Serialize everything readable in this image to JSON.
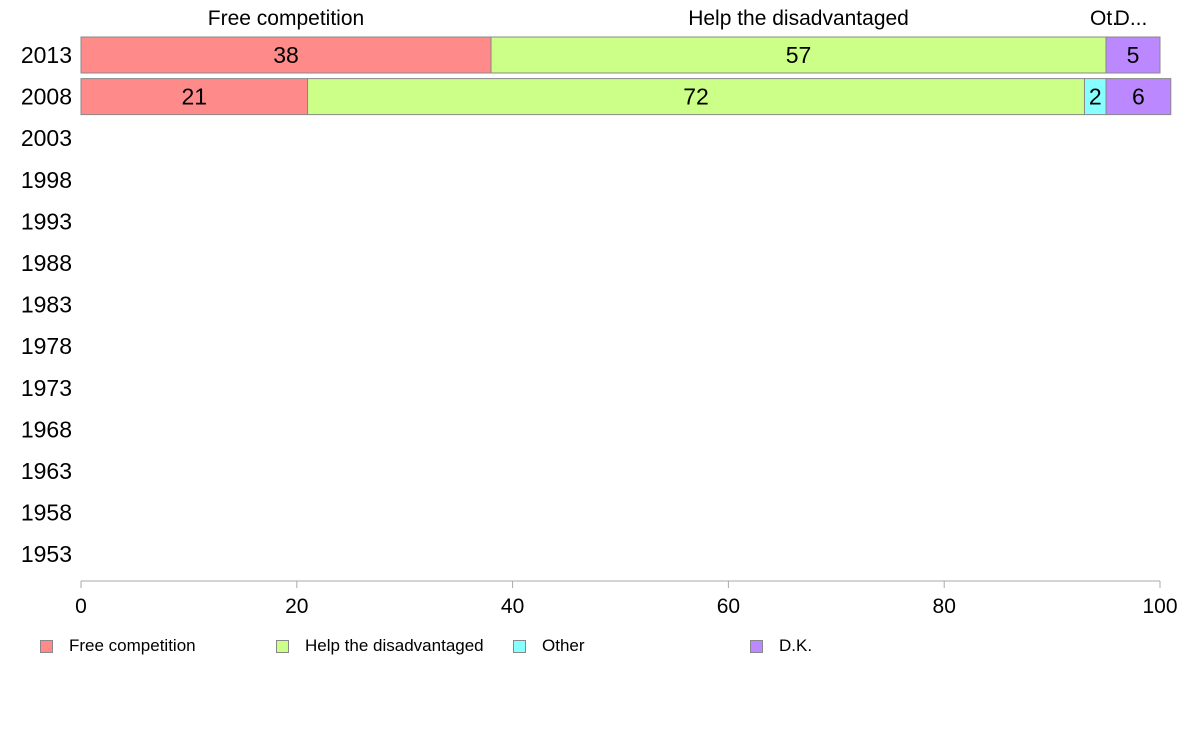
{
  "chart_data": {
    "type": "bar",
    "orientation": "horizontal",
    "stacked": true,
    "categories": [
      "2013",
      "2008",
      "2003",
      "1998",
      "1993",
      "1988",
      "1983",
      "1978",
      "1973",
      "1968",
      "1963",
      "1958",
      "1953"
    ],
    "series": [
      {
        "name": "Free competition",
        "color": "#ff8a8a",
        "values": [
          38,
          21,
          null,
          null,
          null,
          null,
          null,
          null,
          null,
          null,
          null,
          null,
          null
        ]
      },
      {
        "name": "Help the disadvantaged",
        "color": "#ccff88",
        "values": [
          57,
          72,
          null,
          null,
          null,
          null,
          null,
          null,
          null,
          null,
          null,
          null,
          null
        ]
      },
      {
        "name": "Other",
        "color": "#88ffff",
        "values": [
          0,
          2,
          null,
          null,
          null,
          null,
          null,
          null,
          null,
          null,
          null,
          null,
          null
        ]
      },
      {
        "name": "D.K.",
        "color": "#bb88ff",
        "values": [
          5,
          6,
          null,
          null,
          null,
          null,
          null,
          null,
          null,
          null,
          null,
          null,
          null
        ]
      }
    ],
    "top_labels": [
      "Free competition",
      "Help the disadvantaged",
      "Ot.",
      "D..."
    ],
    "xlim": [
      0,
      100
    ],
    "xticks": [
      "0",
      "20",
      "40",
      "60",
      "80",
      "100"
    ],
    "grid": false,
    "legend_position": "bottom"
  }
}
